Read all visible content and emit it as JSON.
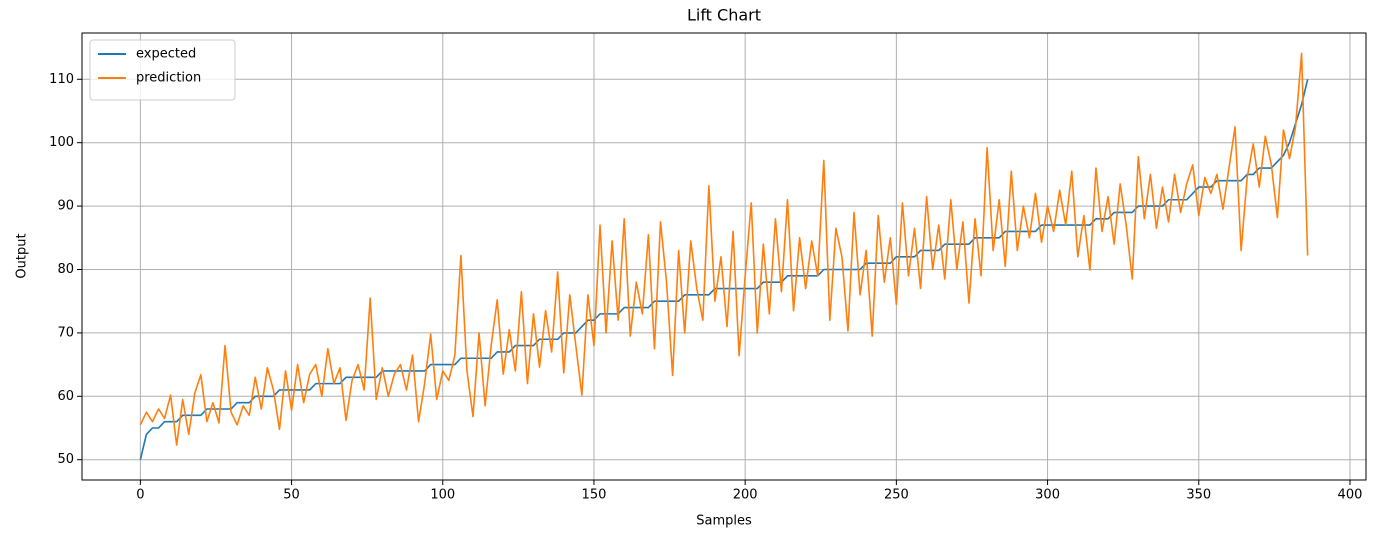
{
  "chart_data": {
    "type": "line",
    "title": "Lift Chart",
    "xlabel": "Samples",
    "ylabel": "Output",
    "x": [
      0,
      2,
      4,
      6,
      8,
      10,
      12,
      14,
      16,
      18,
      20,
      22,
      24,
      26,
      28,
      30,
      32,
      34,
      36,
      38,
      40,
      42,
      44,
      46,
      48,
      50,
      52,
      54,
      56,
      58,
      60,
      62,
      64,
      66,
      68,
      70,
      72,
      74,
      76,
      78,
      80,
      82,
      84,
      86,
      88,
      90,
      92,
      94,
      96,
      98,
      100,
      102,
      104,
      106,
      108,
      110,
      112,
      114,
      116,
      118,
      120,
      122,
      124,
      126,
      128,
      130,
      132,
      134,
      136,
      138,
      140,
      142,
      144,
      146,
      148,
      150,
      152,
      154,
      156,
      158,
      160,
      162,
      164,
      166,
      168,
      170,
      172,
      174,
      176,
      178,
      180,
      182,
      184,
      186,
      188,
      190,
      192,
      194,
      196,
      198,
      200,
      202,
      204,
      206,
      208,
      210,
      212,
      214,
      216,
      218,
      220,
      222,
      224,
      226,
      228,
      230,
      232,
      234,
      236,
      238,
      240,
      242,
      244,
      246,
      248,
      250,
      252,
      254,
      256,
      258,
      260,
      262,
      264,
      266,
      268,
      270,
      272,
      274,
      276,
      278,
      280,
      282,
      284,
      286,
      288,
      290,
      292,
      294,
      296,
      298,
      300,
      302,
      304,
      306,
      308,
      310,
      312,
      314,
      316,
      318,
      320,
      322,
      324,
      326,
      328,
      330,
      332,
      334,
      336,
      338,
      340,
      342,
      344,
      346,
      348,
      350,
      352,
      354,
      356,
      358,
      360,
      362,
      364,
      366,
      368,
      370,
      372,
      374,
      376,
      378,
      380,
      382,
      384,
      386
    ],
    "series": [
      {
        "name": "expected",
        "color": "#1f77b4",
        "values": [
          50,
          54,
          55,
          55,
          56,
          56,
          56,
          57,
          57,
          57,
          57,
          58,
          58,
          58,
          58,
          58,
          59,
          59,
          59,
          60,
          60,
          60,
          60,
          61,
          61,
          61,
          61,
          61,
          61,
          62,
          62,
          62,
          62,
          62,
          63,
          63,
          63,
          63,
          63,
          63,
          64,
          64,
          64,
          64,
          64,
          64,
          64,
          64,
          65,
          65,
          65,
          65,
          65,
          66,
          66,
          66,
          66,
          66,
          66,
          67,
          67,
          67,
          68,
          68,
          68,
          68,
          69,
          69,
          69,
          69,
          70,
          70,
          70,
          71,
          72,
          72,
          73,
          73,
          73,
          73,
          74,
          74,
          74,
          74,
          74,
          75,
          75,
          75,
          75,
          75,
          76,
          76,
          76,
          76,
          76,
          77,
          77,
          77,
          77,
          77,
          77,
          77,
          77,
          78,
          78,
          78,
          78,
          79,
          79,
          79,
          79,
          79,
          79,
          80,
          80,
          80,
          80,
          80,
          80,
          80,
          81,
          81,
          81,
          81,
          81,
          82,
          82,
          82,
          82,
          83,
          83,
          83,
          83,
          84,
          84,
          84,
          84,
          84,
          85,
          85,
          85,
          85,
          85,
          86,
          86,
          86,
          86,
          86,
          86,
          87,
          87,
          87,
          87,
          87,
          87,
          87,
          87,
          87,
          88,
          88,
          88,
          89,
          89,
          89,
          89,
          90,
          90,
          90,
          90,
          90,
          91,
          91,
          91,
          91,
          92,
          93,
          93,
          93,
          94,
          94,
          94,
          94,
          94,
          95,
          95,
          96,
          96,
          96,
          97,
          98,
          100,
          103,
          106,
          110
        ]
      },
      {
        "name": "prediction",
        "color": "#ff7f0e",
        "values": [
          55.5,
          57.5,
          56,
          58,
          56.5,
          60.2,
          52.3,
          59.5,
          54,
          60.5,
          63.4,
          56,
          59,
          55.8,
          68,
          57.5,
          55.5,
          58.5,
          57,
          63,
          58,
          64.5,
          61,
          54.8,
          64,
          57.8,
          65,
          59,
          63.5,
          65,
          60,
          67.5,
          62,
          64.5,
          56.2,
          62.5,
          65,
          61,
          75.5,
          59.5,
          64.5,
          60,
          63.5,
          65,
          61,
          66.5,
          56,
          62,
          69.8,
          59.5,
          64,
          62.5,
          66.5,
          82.2,
          64,
          56.8,
          70,
          58.5,
          68,
          75.2,
          63.5,
          70.5,
          64,
          76.5,
          62,
          73,
          64.6,
          73.5,
          67,
          79.6,
          63.7,
          76,
          68,
          60.2,
          76,
          68,
          87,
          70,
          84.5,
          72,
          88,
          69.5,
          78,
          73,
          85.5,
          67.5,
          87.5,
          78,
          63.3,
          83,
          70,
          84.5,
          77,
          72,
          93.2,
          75,
          82,
          71,
          86,
          66.4,
          79,
          90.5,
          70,
          84,
          73,
          88,
          76.5,
          91,
          73.5,
          85,
          77,
          84.5,
          79,
          97.2,
          72,
          86.5,
          82,
          70.3,
          89,
          76,
          83,
          69.5,
          88.5,
          78,
          85,
          74.5,
          90.5,
          79,
          86.5,
          77,
          91.5,
          80,
          87,
          78.5,
          91,
          80,
          87.5,
          74.7,
          88,
          79,
          99.2,
          83,
          91,
          80.5,
          95.5,
          83,
          90,
          85,
          92,
          84.3,
          90,
          86,
          92.5,
          87,
          95.5,
          82,
          88.5,
          79.9,
          96,
          86,
          91.5,
          84,
          93.5,
          87,
          78.5,
          97.8,
          88,
          95,
          86.5,
          93,
          87.5,
          95,
          89,
          93.5,
          96.5,
          88.5,
          94.5,
          92,
          95,
          89.5,
          96,
          102.5,
          83,
          94.5,
          99.8,
          93,
          101,
          96.5,
          88.2,
          102,
          97.5,
          102.5,
          114.1,
          82.2
        ]
      }
    ],
    "xlim": [
      -19.3,
      405.3
    ],
    "xticks": [
      0,
      50,
      100,
      150,
      200,
      250,
      300,
      350,
      400
    ],
    "ylim": [
      46.8,
      117.3
    ],
    "yticks": [
      50,
      60,
      70,
      80,
      90,
      100,
      110
    ],
    "grid": true,
    "legend": "upper left"
  }
}
